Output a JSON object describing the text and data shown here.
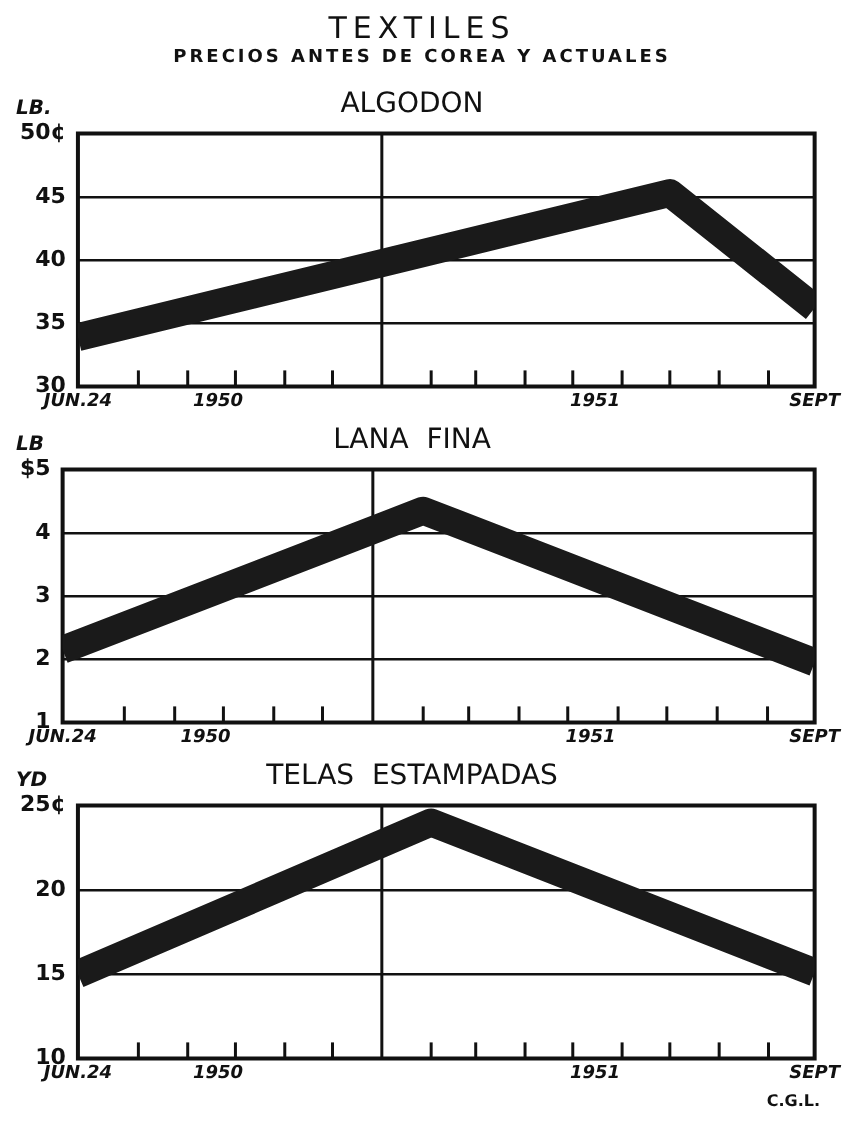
{
  "chart_data": [
    {
      "type": "other",
      "title": "TEXTILES",
      "subtitle": "PRECIOS ANTES DE COREA Y ACTUALES"
    },
    {
      "type": "line",
      "title": "ALGODON",
      "ylabel": "LB.",
      "x": [
        "1950-06-24",
        "1951-07-01",
        "1951-09-30"
      ],
      "series": [
        {
          "color": "#1a1a1a",
          "values": [
            33.9,
            45.3,
            36.2
          ]
        }
      ],
      "xlim": [
        "1950-06-24",
        "1951-09-30"
      ],
      "xticks": [
        {
          "value": "1950-06-24",
          "label": "JUN.24"
        },
        {
          "value": "1950-08-01",
          "label": null
        },
        {
          "value": "1950-09-01",
          "label": null
        },
        {
          "value": "1950-09-20",
          "label": "1950"
        },
        {
          "value": "1950-10-01",
          "label": null
        },
        {
          "value": "1950-11-01",
          "label": null
        },
        {
          "value": "1950-12-01",
          "label": null
        },
        {
          "value": "1951-02-01",
          "label": null
        },
        {
          "value": "1951-03-01",
          "label": null
        },
        {
          "value": "1951-04-01",
          "label": null
        },
        {
          "value": "1951-05-01",
          "label": null
        },
        {
          "value": "1951-05-15",
          "label": "1951"
        },
        {
          "value": "1951-06-01",
          "label": null
        },
        {
          "value": "1951-07-01",
          "label": null
        },
        {
          "value": "1951-08-01",
          "label": null
        },
        {
          "value": "1951-09-01",
          "label": null
        },
        {
          "value": "1951-09-30",
          "label": "SEPT"
        }
      ],
      "ylim": [
        30,
        50
      ],
      "yticks": [
        30,
        35,
        40,
        45,
        {
          "value": 50,
          "label": "50¢"
        }
      ],
      "ref_lines": [
        {
          "axis": "x",
          "value": "1951-01-01"
        }
      ],
      "grid": "y",
      "marker": "none",
      "line_style": "solid"
    },
    {
      "type": "line",
      "title": "LANA  FINA",
      "ylabel": "LB",
      "x": [
        "1950-06-24",
        "1951-02-01",
        "1951-09-30"
      ],
      "series": [
        {
          "color": "#1a1a1a",
          "values": [
            2.15,
            4.35,
            1.95
          ]
        }
      ],
      "xlim": [
        "1950-06-24",
        "1951-09-30"
      ],
      "xticks": [
        {
          "value": "1950-06-24",
          "label": "JUN.24"
        },
        {
          "value": "1950-08-01",
          "label": null
        },
        {
          "value": "1950-09-01",
          "label": null
        },
        {
          "value": "1950-09-20",
          "label": "1950"
        },
        {
          "value": "1950-10-01",
          "label": null
        },
        {
          "value": "1950-11-01",
          "label": null
        },
        {
          "value": "1950-12-01",
          "label": null
        },
        {
          "value": "1951-02-01",
          "label": null
        },
        {
          "value": "1951-03-01",
          "label": null
        },
        {
          "value": "1951-04-01",
          "label": null
        },
        {
          "value": "1951-05-01",
          "label": null
        },
        {
          "value": "1951-05-15",
          "label": "1951"
        },
        {
          "value": "1951-06-01",
          "label": null
        },
        {
          "value": "1951-07-01",
          "label": null
        },
        {
          "value": "1951-08-01",
          "label": null
        },
        {
          "value": "1951-09-01",
          "label": null
        },
        {
          "value": "1951-09-30",
          "label": "SEPT"
        }
      ],
      "ylim": [
        1,
        5
      ],
      "yticks": [
        1,
        2,
        3,
        4,
        {
          "value": 5,
          "label": "$5"
        }
      ],
      "ref_lines": [
        {
          "axis": "x",
          "value": "1951-01-01"
        }
      ],
      "grid": "y",
      "marker": "none",
      "line_style": "solid"
    },
    {
      "type": "line",
      "title": "TELAS  ESTAMPADAS",
      "ylabel": "YD",
      "x": [
        "1950-06-24",
        "1951-02-01",
        "1951-09-30"
      ],
      "series": [
        {
          "color": "#1a1a1a",
          "values": [
            15,
            24,
            15.1
          ]
        }
      ],
      "xlim": [
        "1950-06-24",
        "1951-09-30"
      ],
      "xticks": [
        {
          "value": "1950-06-24",
          "label": "JUN.24"
        },
        {
          "value": "1950-08-01",
          "label": null
        },
        {
          "value": "1950-09-01",
          "label": null
        },
        {
          "value": "1950-09-20",
          "label": "1950"
        },
        {
          "value": "1950-10-01",
          "label": null
        },
        {
          "value": "1950-11-01",
          "label": null
        },
        {
          "value": "1950-12-01",
          "label": null
        },
        {
          "value": "1951-02-01",
          "label": null
        },
        {
          "value": "1951-03-01",
          "label": null
        },
        {
          "value": "1951-04-01",
          "label": null
        },
        {
          "value": "1951-05-01",
          "label": null
        },
        {
          "value": "1951-05-15",
          "label": "1951"
        },
        {
          "value": "1951-06-01",
          "label": null
        },
        {
          "value": "1951-07-01",
          "label": null
        },
        {
          "value": "1951-08-01",
          "label": null
        },
        {
          "value": "1951-09-01",
          "label": null
        },
        {
          "value": "1951-09-30",
          "label": "SEPT"
        }
      ],
      "ylim": [
        10,
        25
      ],
      "yticks": [
        10,
        15,
        20,
        {
          "value": 25,
          "label": "25¢"
        }
      ],
      "ref_lines": [
        {
          "axis": "x",
          "value": "1951-01-01"
        }
      ],
      "grid": "y",
      "marker": "none",
      "line_style": "solid",
      "annotations": [
        "C.G.L."
      ]
    }
  ]
}
